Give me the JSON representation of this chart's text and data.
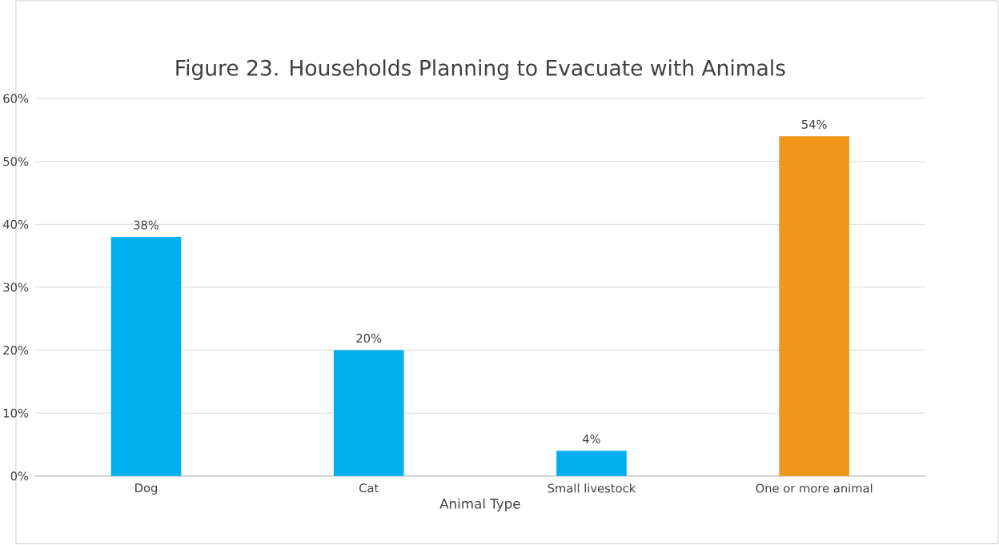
{
  "chart_data": {
    "type": "bar",
    "title": "Figure 23. Households Planning to Evacuate with Animals",
    "xlabel": "Animal Type",
    "categories": [
      "Dog",
      "Cat",
      "Small livestock",
      "One or more animal"
    ],
    "values": [
      38,
      20,
      4,
      54
    ],
    "colors": [
      "#00b0f0",
      "#00b0f0",
      "#00b0f0",
      "#f0961a"
    ],
    "value_labels": [
      "38%",
      "20%",
      "4%",
      "54%"
    ],
    "ylim": [
      0,
      60
    ],
    "yticks": [
      {
        "value": 0,
        "label": "0%"
      },
      {
        "value": 10,
        "label": "10%"
      },
      {
        "value": 20,
        "label": "20%"
      },
      {
        "value": 30,
        "label": "30%"
      },
      {
        "value": 40,
        "label": "40%"
      },
      {
        "value": 50,
        "label": "50%"
      },
      {
        "value": 60,
        "label": "60%"
      }
    ],
    "grid": "y"
  }
}
